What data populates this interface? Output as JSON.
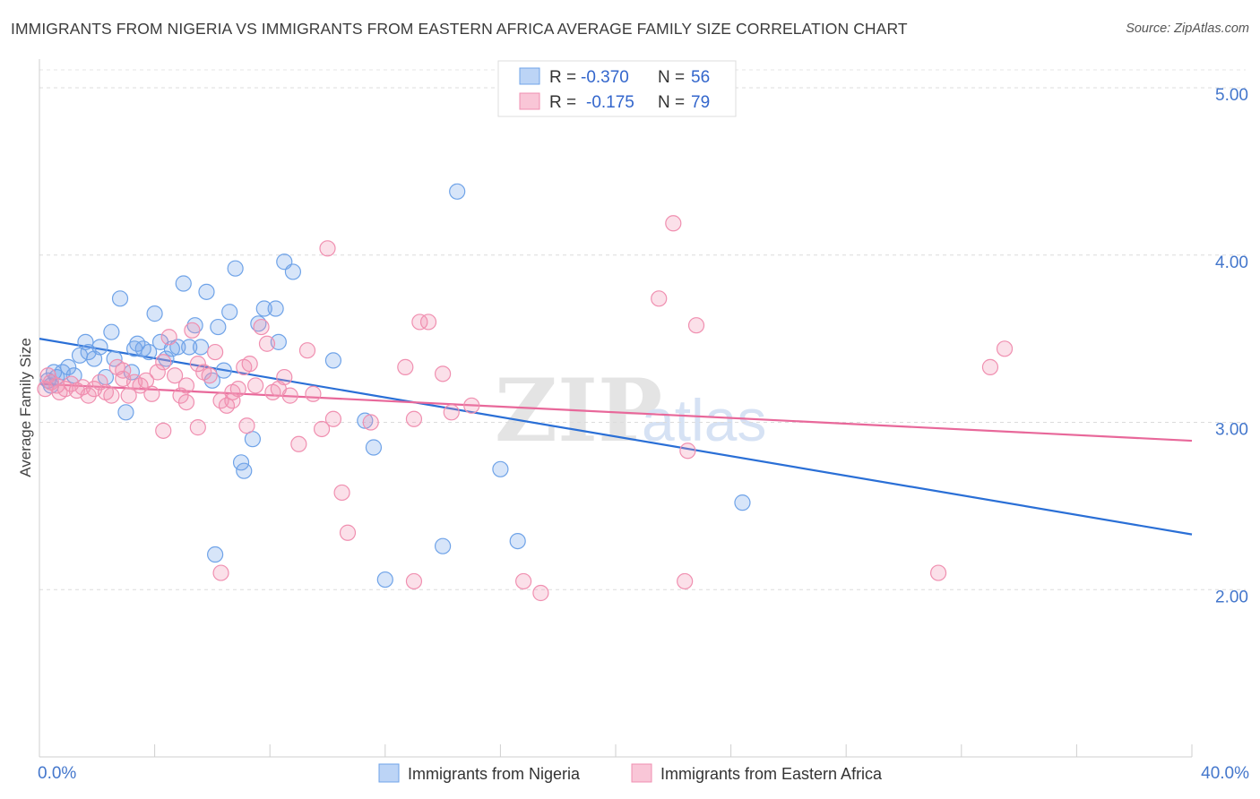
{
  "title": "IMMIGRANTS FROM NIGERIA VS IMMIGRANTS FROM EASTERN AFRICA AVERAGE FAMILY SIZE CORRELATION CHART",
  "source": "Source: ZipAtlas.com",
  "watermark": {
    "zip": "ZIP",
    "atlas": "atlas"
  },
  "chart_data": {
    "type": "scatter",
    "ylabel": "Average Family Size",
    "xlim": [
      0,
      40
    ],
    "ylim": [
      1.0,
      5.15
    ],
    "x_tick_labels": [
      "0.0%",
      "40.0%"
    ],
    "y_ticks": [
      2.0,
      3.0,
      4.0,
      5.0
    ],
    "y_tick_labels": [
      "2.00",
      "3.00",
      "4.00",
      "5.00"
    ],
    "grid": true,
    "legend_position": "top-center",
    "stats_legend": [
      {
        "r_label": "R =",
        "r_value": "-0.370",
        "n_label": "N =",
        "n_value": "56"
      },
      {
        "r_label": "R =",
        "r_value": "-0.175",
        "n_label": "N =",
        "n_value": "79"
      }
    ],
    "series": [
      {
        "name": "Immigrants from Nigeria",
        "color": "#6fa3e8",
        "line_color": "#2a6fd6",
        "trend": [
          [
            0,
            3.5
          ],
          [
            40,
            2.33
          ]
        ],
        "points": [
          [
            0.3,
            3.25
          ],
          [
            0.4,
            3.22
          ],
          [
            0.5,
            3.3
          ],
          [
            0.6,
            3.27
          ],
          [
            0.8,
            3.3
          ],
          [
            1.0,
            3.33
          ],
          [
            1.2,
            3.28
          ],
          [
            1.4,
            3.4
          ],
          [
            1.6,
            3.48
          ],
          [
            1.7,
            3.42
          ],
          [
            1.9,
            3.38
          ],
          [
            2.1,
            3.45
          ],
          [
            2.3,
            3.27
          ],
          [
            2.5,
            3.54
          ],
          [
            2.6,
            3.38
          ],
          [
            2.8,
            3.74
          ],
          [
            3.0,
            3.06
          ],
          [
            3.2,
            3.3
          ],
          [
            3.4,
            3.47
          ],
          [
            3.6,
            3.44
          ],
          [
            3.8,
            3.42
          ],
          [
            4.0,
            3.65
          ],
          [
            4.2,
            3.48
          ],
          [
            4.4,
            3.38
          ],
          [
            4.6,
            3.44
          ],
          [
            4.8,
            3.45
          ],
          [
            5.0,
            3.83
          ],
          [
            5.2,
            3.45
          ],
          [
            5.4,
            3.58
          ],
          [
            5.6,
            3.45
          ],
          [
            5.8,
            3.78
          ],
          [
            6.0,
            3.25
          ],
          [
            6.2,
            3.57
          ],
          [
            6.4,
            3.31
          ],
          [
            6.6,
            3.66
          ],
          [
            6.8,
            3.92
          ],
          [
            7.0,
            2.76
          ],
          [
            7.1,
            2.71
          ],
          [
            7.4,
            2.9
          ],
          [
            7.6,
            3.59
          ],
          [
            7.8,
            3.68
          ],
          [
            8.2,
            3.68
          ],
          [
            8.3,
            3.48
          ],
          [
            8.5,
            3.96
          ],
          [
            8.8,
            3.9
          ],
          [
            10.2,
            3.37
          ],
          [
            11.3,
            3.01
          ],
          [
            11.6,
            2.85
          ],
          [
            12.0,
            2.06
          ],
          [
            14.0,
            2.26
          ],
          [
            14.5,
            4.38
          ],
          [
            16.0,
            2.72
          ],
          [
            16.6,
            2.29
          ],
          [
            6.1,
            2.21
          ],
          [
            24.4,
            2.52
          ],
          [
            3.3,
            3.44
          ]
        ]
      },
      {
        "name": "Immigrants from Eastern Africa",
        "color": "#f08fb0",
        "line_color": "#e8689a",
        "trend": [
          [
            0,
            3.23
          ],
          [
            40,
            2.89
          ]
        ],
        "points": [
          [
            0.2,
            3.2
          ],
          [
            0.3,
            3.28
          ],
          [
            0.4,
            3.24
          ],
          [
            0.6,
            3.22
          ],
          [
            0.7,
            3.18
          ],
          [
            0.9,
            3.2
          ],
          [
            1.1,
            3.23
          ],
          [
            1.3,
            3.19
          ],
          [
            1.5,
            3.21
          ],
          [
            1.7,
            3.16
          ],
          [
            1.9,
            3.2
          ],
          [
            2.1,
            3.24
          ],
          [
            2.3,
            3.18
          ],
          [
            2.5,
            3.16
          ],
          [
            2.7,
            3.33
          ],
          [
            2.9,
            3.26
          ],
          [
            3.1,
            3.16
          ],
          [
            3.3,
            3.24
          ],
          [
            3.5,
            3.22
          ],
          [
            3.7,
            3.25
          ],
          [
            3.9,
            3.17
          ],
          [
            4.1,
            3.3
          ],
          [
            4.3,
            3.36
          ],
          [
            4.5,
            3.51
          ],
          [
            4.7,
            3.28
          ],
          [
            4.9,
            3.16
          ],
          [
            5.1,
            3.22
          ],
          [
            5.3,
            3.55
          ],
          [
            5.5,
            3.35
          ],
          [
            5.7,
            3.3
          ],
          [
            5.9,
            3.28
          ],
          [
            6.1,
            3.42
          ],
          [
            6.3,
            3.13
          ],
          [
            6.5,
            3.1
          ],
          [
            6.7,
            3.18
          ],
          [
            6.9,
            3.2
          ],
          [
            7.1,
            3.33
          ],
          [
            7.3,
            3.35
          ],
          [
            7.5,
            3.22
          ],
          [
            7.7,
            3.57
          ],
          [
            7.9,
            3.47
          ],
          [
            8.1,
            3.18
          ],
          [
            8.3,
            3.2
          ],
          [
            8.5,
            3.27
          ],
          [
            8.7,
            3.16
          ],
          [
            9.0,
            2.87
          ],
          [
            9.3,
            3.43
          ],
          [
            9.5,
            3.17
          ],
          [
            9.8,
            2.96
          ],
          [
            10.0,
            4.04
          ],
          [
            10.2,
            3.02
          ],
          [
            10.5,
            2.58
          ],
          [
            10.7,
            2.34
          ],
          [
            11.5,
            3.0
          ],
          [
            12.7,
            3.33
          ],
          [
            13.0,
            3.02
          ],
          [
            13.2,
            3.6
          ],
          [
            13.5,
            3.6
          ],
          [
            14.3,
            3.06
          ],
          [
            14.0,
            3.29
          ],
          [
            15.0,
            3.1
          ],
          [
            13.0,
            2.05
          ],
          [
            16.8,
            2.05
          ],
          [
            17.4,
            1.98
          ],
          [
            22.0,
            4.19
          ],
          [
            22.5,
            2.83
          ],
          [
            22.8,
            3.58
          ],
          [
            21.5,
            3.74
          ],
          [
            22.4,
            2.05
          ],
          [
            31.2,
            2.1
          ],
          [
            33.5,
            3.44
          ],
          [
            33.0,
            3.33
          ],
          [
            5.5,
            2.97
          ],
          [
            6.3,
            2.1
          ],
          [
            7.2,
            2.98
          ],
          [
            4.3,
            2.95
          ],
          [
            2.9,
            3.31
          ],
          [
            5.1,
            3.12
          ],
          [
            6.7,
            3.13
          ]
        ]
      }
    ]
  }
}
